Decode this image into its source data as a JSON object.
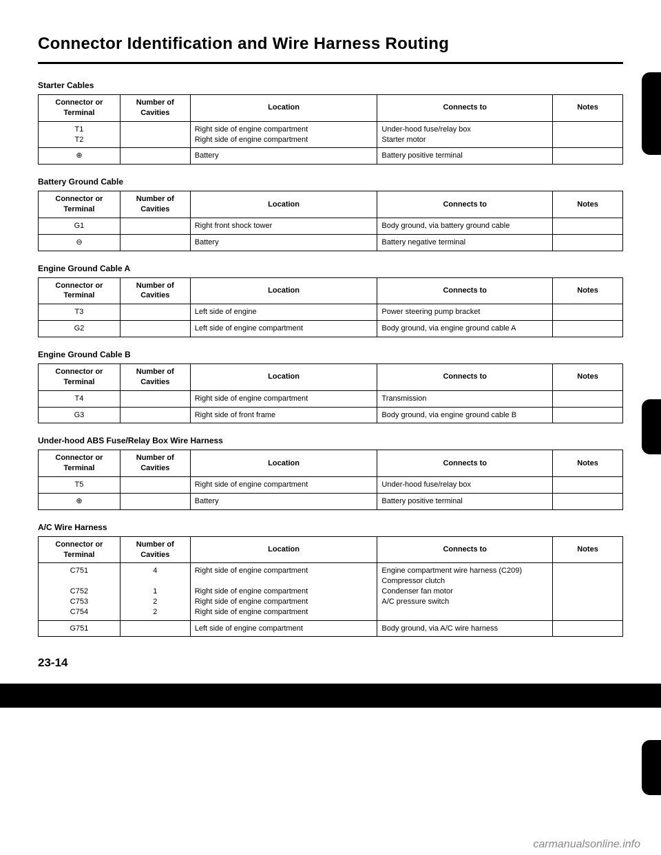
{
  "title": "Connector Identification and Wire Harness Routing",
  "page_number": "23-14",
  "watermark": "carmanualsonline.info",
  "headers": {
    "col1": "Connector or Terminal",
    "col2": "Number of Cavities",
    "col3": "Location",
    "col4": "Connects to",
    "col5": "Notes"
  },
  "sections": [
    {
      "title": "Starter Cables",
      "rows": [
        {
          "c1": "T1\nT2",
          "c2": "",
          "c3": "Right side of engine compartment\nRight side of engine compartment",
          "c4": "Under-hood fuse/relay box\nStarter motor",
          "c5": ""
        },
        {
          "c1": "⊕",
          "c2": "",
          "c3": "Battery",
          "c4": "Battery positive terminal",
          "c5": ""
        }
      ]
    },
    {
      "title": "Battery Ground Cable",
      "rows": [
        {
          "c1": "G1",
          "c2": "",
          "c3": "Right front shock tower",
          "c4": "Body ground, via battery ground cable",
          "c5": ""
        },
        {
          "c1": "⊖",
          "c2": "",
          "c3": "Battery",
          "c4": "Battery negative terminal",
          "c5": ""
        }
      ]
    },
    {
      "title": "Engine Ground Cable A",
      "rows": [
        {
          "c1": "T3",
          "c2": "",
          "c3": "Left side of engine",
          "c4": "Power steering pump bracket",
          "c5": ""
        },
        {
          "c1": "G2",
          "c2": "",
          "c3": "Left side of engine compartment",
          "c4": "Body ground, via engine ground cable A",
          "c5": ""
        }
      ]
    },
    {
      "title": "Engine Ground Cable B",
      "rows": [
        {
          "c1": "T4",
          "c2": "",
          "c3": "Right side of engine compartment",
          "c4": "Transmission",
          "c5": ""
        },
        {
          "c1": "G3",
          "c2": "",
          "c3": "Right side of front frame",
          "c4": "Body ground, via engine ground cable B",
          "c5": ""
        }
      ]
    },
    {
      "title": "Under-hood ABS Fuse/Relay Box Wire Harness",
      "rows": [
        {
          "c1": "T5",
          "c2": "",
          "c3": "Right side of engine compartment",
          "c4": "Under-hood fuse/relay box",
          "c5": ""
        },
        {
          "c1": "⊕",
          "c2": "",
          "c3": "Battery",
          "c4": "Battery positive terminal",
          "c5": ""
        }
      ]
    },
    {
      "title": "A/C Wire Harness",
      "rows": [
        {
          "c1": "C751\n\nC752\nC753\nC754",
          "c2": "4\n\n1\n2\n2",
          "c3": "Right side of engine compartment\n\nRight side of engine compartment\nRight side of engine compartment\nRight side of engine compartment",
          "c4": "Engine compartment wire harness (C209)\nCompressor clutch\nCondenser fan motor\nA/C pressure switch",
          "c5": ""
        },
        {
          "c1": "G751",
          "c2": "",
          "c3": "Left side of engine compartment",
          "c4": "Body ground, via A/C wire harness",
          "c5": ""
        }
      ]
    }
  ]
}
